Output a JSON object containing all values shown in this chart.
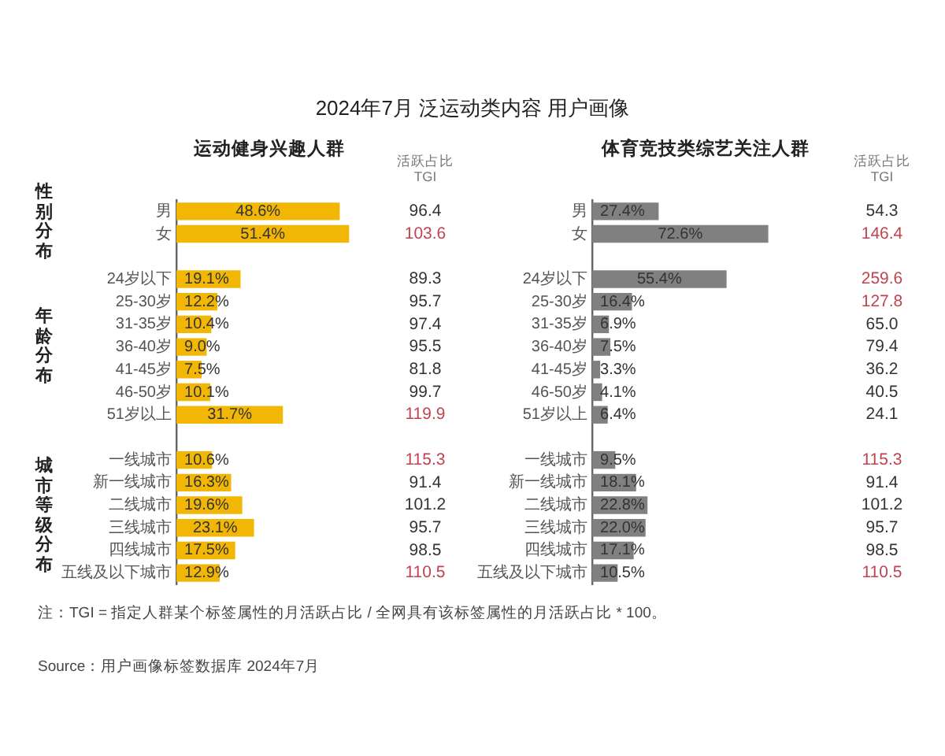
{
  "chart_data": [
    {
      "type": "bar",
      "orientation": "horizontal",
      "title": "2024年7月 泛运动类内容 用户画像",
      "subtitle": "运动健身兴趣人群",
      "tick_labels": "y",
      "color": "#f2b705",
      "categories": [
        "男",
        "女",
        null,
        "24岁以下",
        "25-30岁",
        "31-35岁",
        "36-40岁",
        "41-45岁",
        "46-50岁",
        "51岁以上",
        null,
        "一线城市",
        "新一线城市",
        "二线城市",
        "三线城市",
        "四线城市",
        "五线及以下城市"
      ],
      "values": [
        48.6,
        51.4,
        null,
        19.1,
        12.2,
        10.4,
        9.0,
        7.5,
        10.1,
        31.7,
        null,
        10.6,
        16.3,
        19.6,
        23.1,
        17.5,
        12.9
      ],
      "value_labels": [
        "48.6%",
        "51.4%",
        null,
        "19.1%",
        "12.2%",
        "10.4%",
        "9.0%",
        "7.5%",
        "10.1%",
        "31.7%",
        null,
        "10.6%",
        "16.3%",
        "19.6%",
        "23.1%",
        "17.5%",
        "12.9%"
      ],
      "annotations": [
        "性别分布",
        "年龄分布",
        "城市等级分布",
        "注：TGI = 指定人群某个标签属性的月活跃占比 / 全网具有该标签属性的月活跃占比 * 100。",
        "Source：用户画像标签数据库 2024年7月"
      ]
    },
    {
      "type": "other",
      "title": "活跃占比 TGI",
      "values": [
        96.4,
        103.6,
        null,
        89.3,
        95.7,
        97.4,
        95.5,
        81.8,
        99.7,
        119.9,
        null,
        115.3,
        91.4,
        101.2,
        95.7,
        98.5,
        110.5
      ],
      "value_labels": [
        "96.4",
        "103.6",
        null,
        "89.3",
        "95.7",
        "97.4",
        "95.5",
        "81.8",
        "99.7",
        "119.9",
        null,
        "115.3",
        "91.4",
        "101.2",
        "95.7",
        "98.5",
        "110.5"
      ],
      "colors": [
        "#333333",
        "#c0434f",
        null,
        "#333333",
        "#333333",
        "#333333",
        "#333333",
        "#333333",
        "#333333",
        "#c0434f",
        null,
        "#c0434f",
        "#333333",
        "#333333",
        "#333333",
        "#333333",
        "#c0434f"
      ]
    },
    {
      "type": "bar",
      "orientation": "horizontal",
      "title": "体育竞技类综艺关注人群",
      "tick_labels": "y",
      "color": "#808080",
      "categories": [
        "男",
        "女",
        null,
        "24岁以下",
        "25-30岁",
        "31-35岁",
        "36-40岁",
        "41-45岁",
        "46-50岁",
        "51岁以上",
        null,
        "一线城市",
        "新一线城市",
        "二线城市",
        "三线城市",
        "四线城市",
        "五线及以下城市"
      ],
      "values": [
        27.4,
        72.6,
        null,
        55.4,
        16.4,
        6.9,
        7.5,
        3.3,
        4.1,
        6.4,
        null,
        9.5,
        18.1,
        22.8,
        22.0,
        17.1,
        10.5
      ],
      "value_labels": [
        "27.4%",
        "72.6%",
        null,
        "55.4%",
        "16.4%",
        "6.9%",
        "7.5%",
        "3.3%",
        "4.1%",
        "6.4%",
        null,
        "9.5%",
        "18.1%",
        "22.8%",
        "22.0%",
        "17.1%",
        "10.5%"
      ]
    },
    {
      "type": "other",
      "title": "活跃占比 TGI",
      "values": [
        54.3,
        146.4,
        null,
        259.6,
        127.8,
        65.0,
        79.4,
        36.2,
        40.5,
        24.1,
        null,
        115.3,
        91.4,
        101.2,
        95.7,
        98.5,
        110.5
      ],
      "value_labels": [
        "54.3",
        "146.4",
        null,
        "259.6",
        "127.8",
        "65.0",
        "79.4",
        "36.2",
        "40.5",
        "24.1",
        null,
        "115.3",
        "91.4",
        "101.2",
        "95.7",
        "98.5",
        "110.5"
      ],
      "colors": [
        "#333333",
        "#c0434f",
        null,
        "#c0434f",
        "#c0434f",
        "#333333",
        "#333333",
        "#333333",
        "#333333",
        "#333333",
        null,
        "#c0434f",
        "#333333",
        "#333333",
        "#333333",
        "#333333",
        "#c0434f"
      ]
    }
  ]
}
